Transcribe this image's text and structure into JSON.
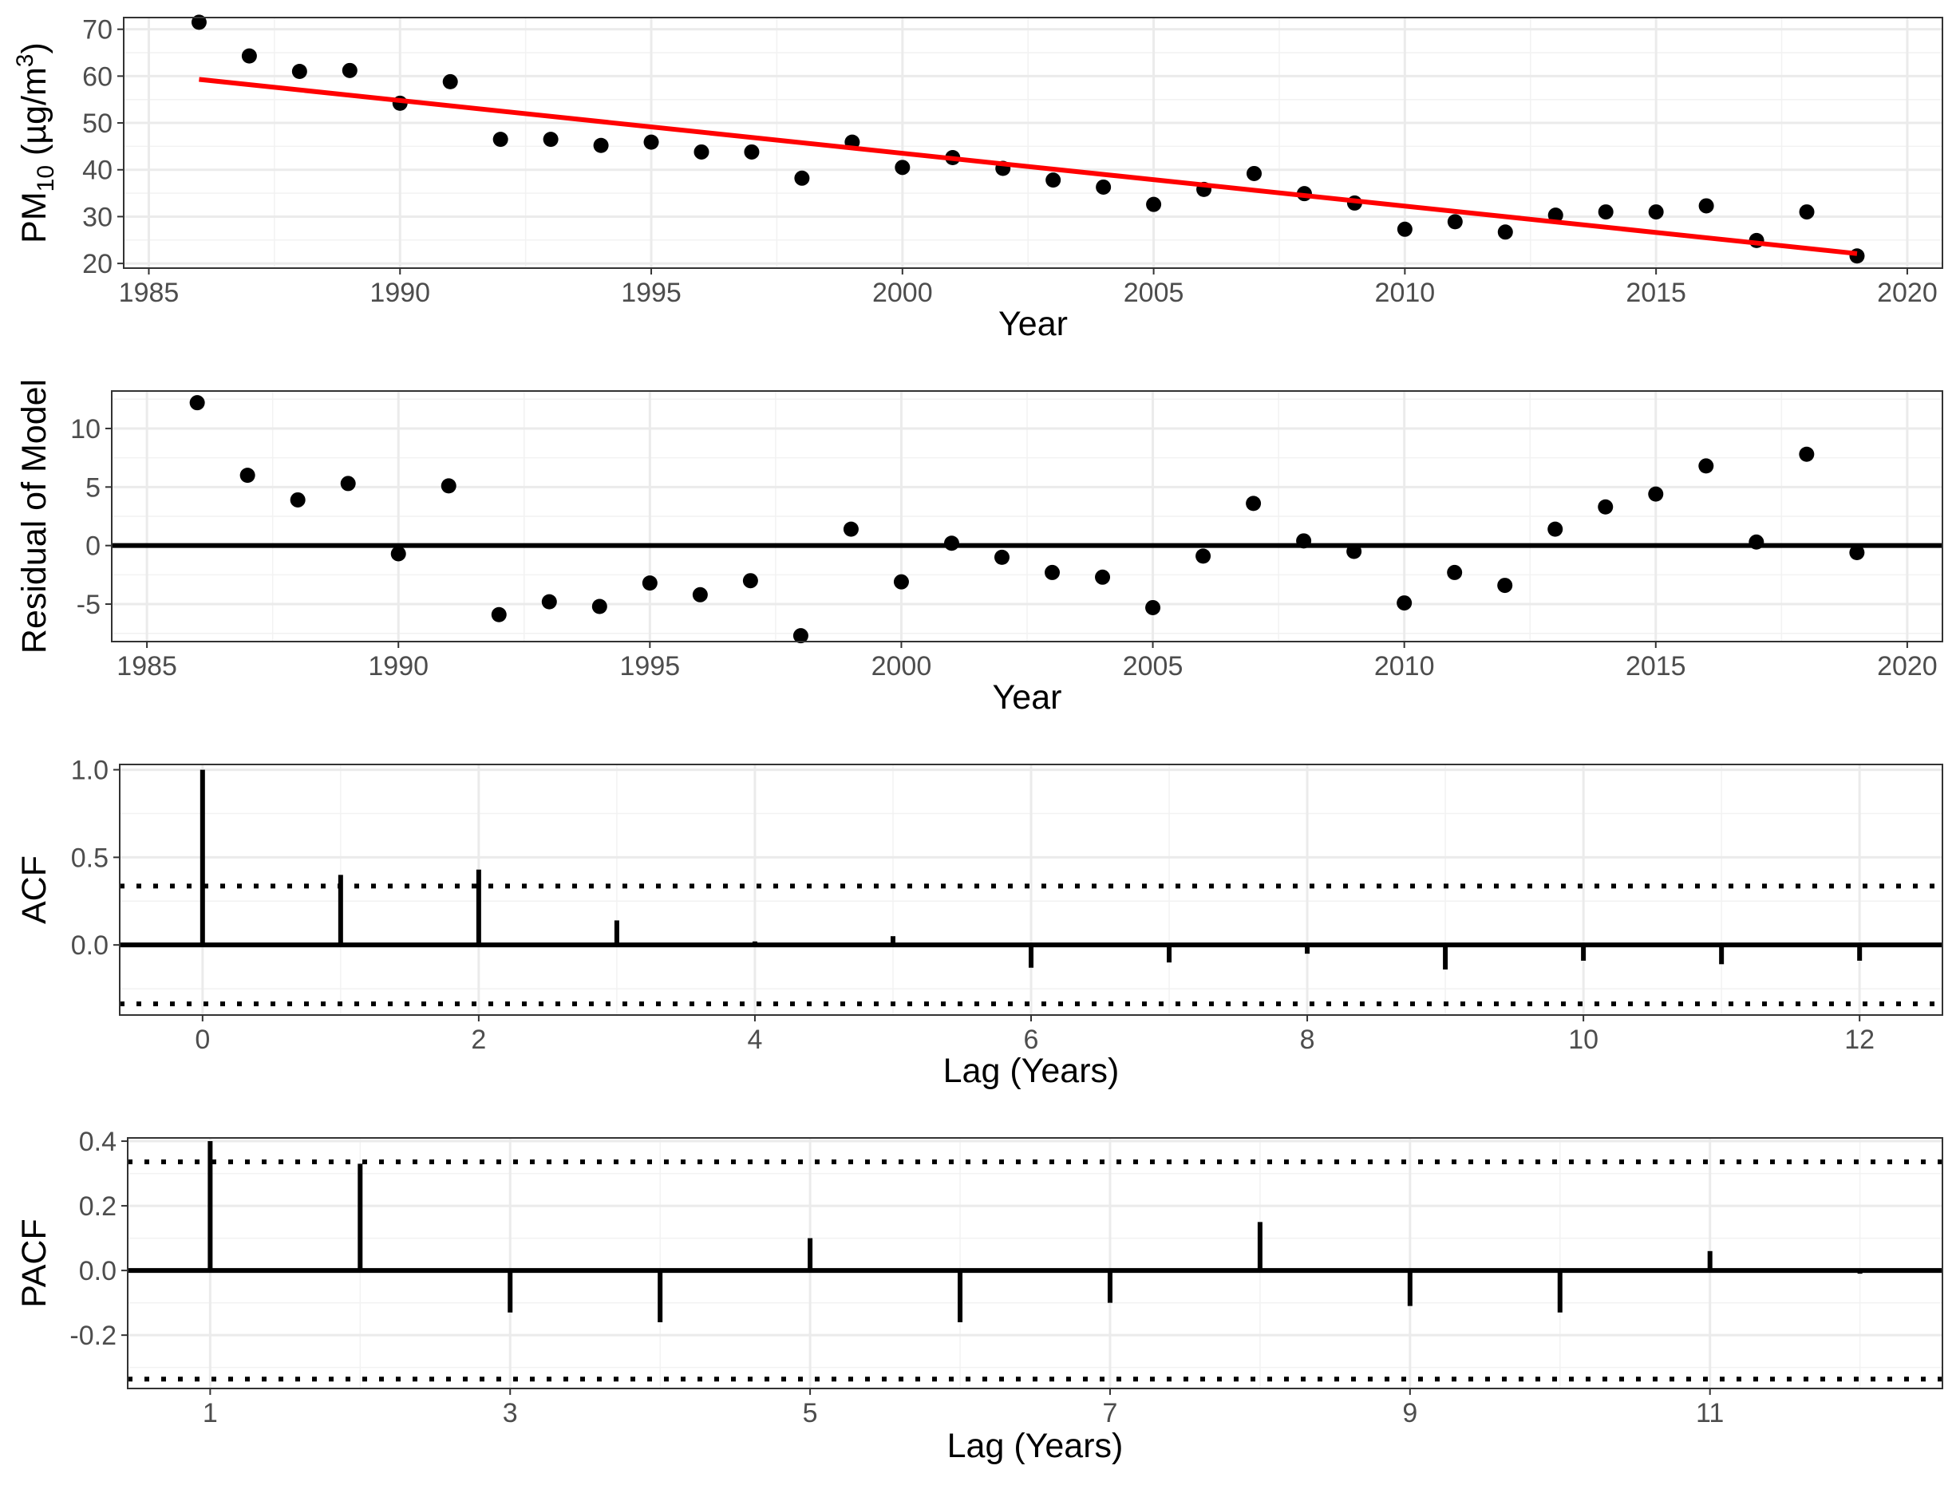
{
  "chart_data": [
    {
      "type": "scatter",
      "panel": "PM10 trend",
      "xlabel": "Year",
      "ylabel_parts": {
        "main": "PM",
        "sub": "10",
        "units_open": " (µg/m",
        "sup": "3",
        "units_close": ")"
      },
      "xlim": [
        1984.5,
        2020.7
      ],
      "ylim": [
        19,
        72.5
      ],
      "xticks": [
        1985,
        1990,
        1995,
        2000,
        2005,
        2010,
        2015,
        2020
      ],
      "yticks": [
        20,
        30,
        40,
        50,
        60,
        70
      ],
      "grid": true,
      "series": [
        {
          "x": [
            1986,
            1987,
            1988,
            1989,
            1990,
            1991,
            1992,
            1993,
            1994,
            1995,
            1996,
            1997,
            1998,
            1999,
            2000,
            2001,
            2002,
            2003,
            2004,
            2005,
            2006,
            2007,
            2008,
            2009,
            2010,
            2011,
            2012,
            2013,
            2014,
            2015,
            2016,
            2017,
            2018,
            2019
          ],
          "y": [
            71.5,
            64.3,
            61.0,
            61.2,
            54.2,
            58.8,
            46.5,
            46.5,
            45.2,
            45.9,
            43.8,
            43.8,
            38.2,
            45.9,
            40.5,
            42.6,
            40.3,
            37.8,
            36.3,
            32.6,
            35.8,
            39.2,
            34.9,
            32.9,
            27.3,
            28.9,
            26.7,
            30.3,
            31.0,
            31.0,
            32.3,
            24.9,
            31.0,
            21.6
          ],
          "color": "#000000",
          "mark": "point"
        },
        {
          "x": [
            1986,
            2019
          ],
          "y": [
            59.3,
            22.1
          ],
          "color": "#ff0000",
          "mark": "line"
        }
      ]
    },
    {
      "type": "scatter",
      "panel": "Residuals",
      "xlabel": "Year",
      "ylabel": "Residual of Model",
      "xlim": [
        1984.3,
        2020.7
      ],
      "ylim": [
        -8.2,
        13.2
      ],
      "xticks": [
        1985,
        1990,
        1995,
        2000,
        2005,
        2010,
        2015,
        2020
      ],
      "yticks": [
        -5,
        0,
        5,
        10
      ],
      "ytick_labels": [
        "-5",
        "0",
        "5",
        "10"
      ],
      "hline": 0,
      "grid": true,
      "series": [
        {
          "x": [
            1986,
            1987,
            1988,
            1989,
            1990,
            1991,
            1992,
            1993,
            1994,
            1995,
            1996,
            1997,
            1998,
            1999,
            2000,
            2001,
            2002,
            2003,
            2004,
            2005,
            2006,
            2007,
            2008,
            2009,
            2010,
            2011,
            2012,
            2013,
            2014,
            2015,
            2016,
            2017,
            2018,
            2019
          ],
          "y": [
            12.2,
            6.0,
            3.9,
            5.3,
            -0.7,
            5.1,
            -5.9,
            -4.8,
            -5.2,
            -3.2,
            -4.2,
            -3.0,
            -7.7,
            1.4,
            -3.1,
            0.2,
            -1.0,
            -2.3,
            -2.7,
            -5.3,
            -0.9,
            3.6,
            0.4,
            -0.5,
            -4.9,
            -2.3,
            -3.4,
            1.4,
            3.3,
            4.4,
            6.8,
            0.3,
            7.8,
            -0.6
          ],
          "color": "#000000",
          "mark": "point"
        }
      ]
    },
    {
      "type": "bar",
      "panel": "ACF",
      "xlabel": "Lag (Years)",
      "ylabel": "ACF",
      "xlim": [
        -0.6,
        12.6
      ],
      "ylim": [
        -0.4,
        1.03
      ],
      "xticks": [
        0,
        2,
        4,
        6,
        8,
        10,
        12
      ],
      "yticks": [
        0,
        0.5,
        1.0
      ],
      "ytick_labels": [
        "0.0",
        "0.5",
        "1.0"
      ],
      "confidence_band": 0.336,
      "hline": 0,
      "grid": true,
      "series": [
        {
          "x": [
            0,
            1,
            2,
            3,
            4,
            5,
            6,
            7,
            8,
            9,
            10,
            11,
            12
          ],
          "y": [
            1.0,
            0.4,
            0.43,
            0.14,
            0.02,
            0.05,
            -0.13,
            -0.1,
            -0.05,
            -0.14,
            -0.09,
            -0.11,
            -0.09
          ],
          "color": "#000000",
          "mark": "spike"
        }
      ]
    },
    {
      "type": "bar",
      "panel": "PACF",
      "xlabel": "Lag (Years)",
      "ylabel": "PACF",
      "xlim": [
        0.45,
        12.55
      ],
      "ylim": [
        -0.365,
        0.41
      ],
      "xticks": [
        1,
        3,
        5,
        7,
        9,
        11
      ],
      "yticks": [
        -0.2,
        0,
        0.2,
        0.4
      ],
      "ytick_labels": [
        "-0.2",
        "0.0",
        "0.2",
        "0.4"
      ],
      "confidence_band": 0.336,
      "hline": 0,
      "grid": true,
      "series": [
        {
          "x": [
            1,
            2,
            3,
            4,
            5,
            6,
            7,
            8,
            9,
            10,
            11,
            12
          ],
          "y": [
            0.4,
            0.33,
            -0.13,
            -0.16,
            0.1,
            -0.16,
            -0.1,
            0.15,
            -0.11,
            -0.13,
            0.06,
            -0.01
          ],
          "color": "#000000",
          "mark": "spike"
        }
      ]
    }
  ]
}
